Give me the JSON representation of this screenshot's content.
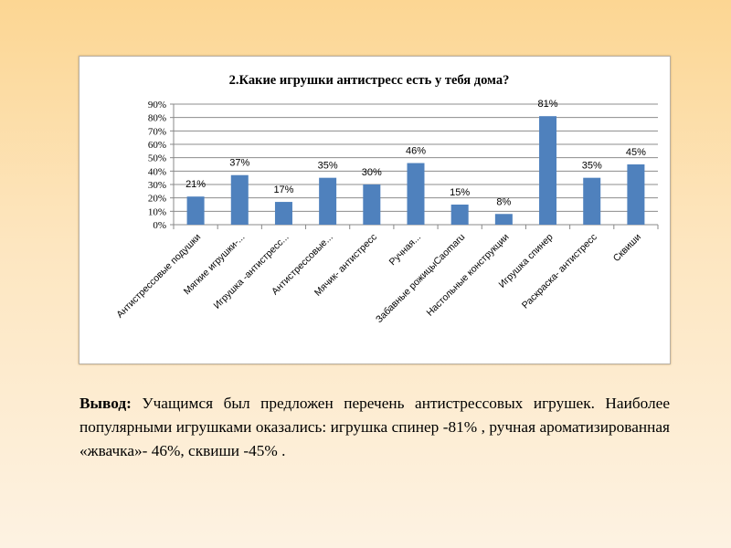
{
  "chart_data": {
    "type": "bar",
    "title": "2.Какие игрушки антистресс есть у тебя дома?",
    "categories": [
      "Антистрессовые подушки",
      "Мягкие игрушки-...",
      "Игрушка -антистресс...",
      "Антистрессовые...",
      "Мячик- антистресс",
      "Ручная...",
      "Забавные рожицыCaomaru",
      "Настольные конструкции",
      "Игрушка спинер",
      "Раскраска- антистресс",
      "Сквиши"
    ],
    "values": [
      21,
      37,
      17,
      35,
      30,
      46,
      15,
      8,
      81,
      35,
      45
    ],
    "data_labels": [
      "21%",
      "37%",
      "17%",
      "35%",
      "30%",
      "46%",
      "15%",
      "8%",
      "81%",
      "35%",
      "45%"
    ],
    "yticks": [
      "0%",
      "10%",
      "20%",
      "30%",
      "40%",
      "50%",
      "60%",
      "70%",
      "80%",
      "90%"
    ],
    "ylim": [
      0,
      90
    ],
    "grid": true,
    "xlabel": "",
    "ylabel": "",
    "bar_color": "#4f81bd"
  },
  "conclusion": {
    "label": "Вывод:",
    "text": " Учащимся был предложен перечень антистрессовых игрушек. Наиболее популярными игрушками оказались: игрушка спинер -81%  , ручная ароматизированная «жвачка»- 46%, сквиши -45% ."
  }
}
